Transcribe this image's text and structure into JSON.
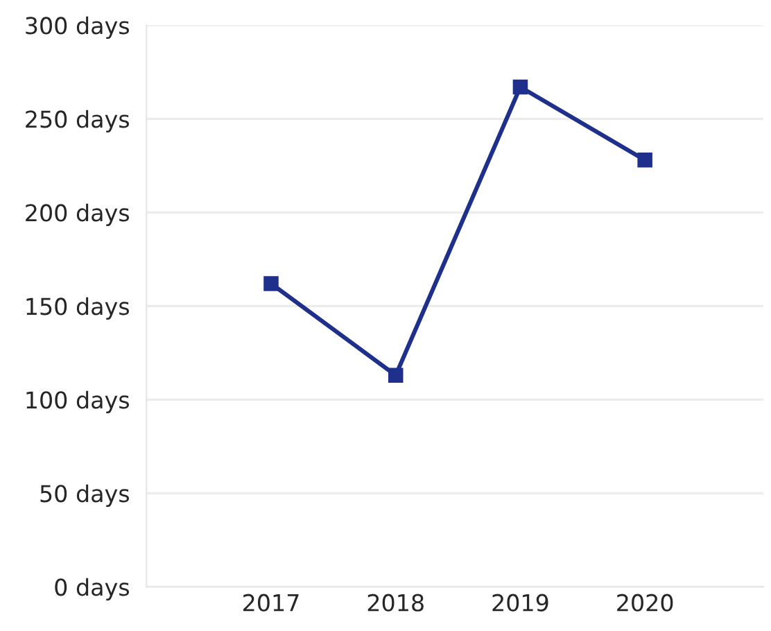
{
  "chart_data": {
    "type": "line",
    "categories": [
      "2017",
      "2018",
      "2019",
      "2020"
    ],
    "series": [
      {
        "color": "#1f2f8c",
        "values": [
          162,
          113,
          267,
          228
        ]
      }
    ],
    "ylim": [
      0,
      300
    ],
    "yticks": [
      {
        "value": 0,
        "label": "0 days"
      },
      {
        "value": 50,
        "label": "50 days"
      },
      {
        "value": 100,
        "label": "100 days"
      },
      {
        "value": 150,
        "label": "150 days"
      },
      {
        "value": 200,
        "label": "200 days"
      },
      {
        "value": 250,
        "label": "250 days"
      },
      {
        "value": 300,
        "label": "300 days"
      }
    ],
    "grid": "y",
    "marker": "square",
    "line_style": "solid"
  }
}
